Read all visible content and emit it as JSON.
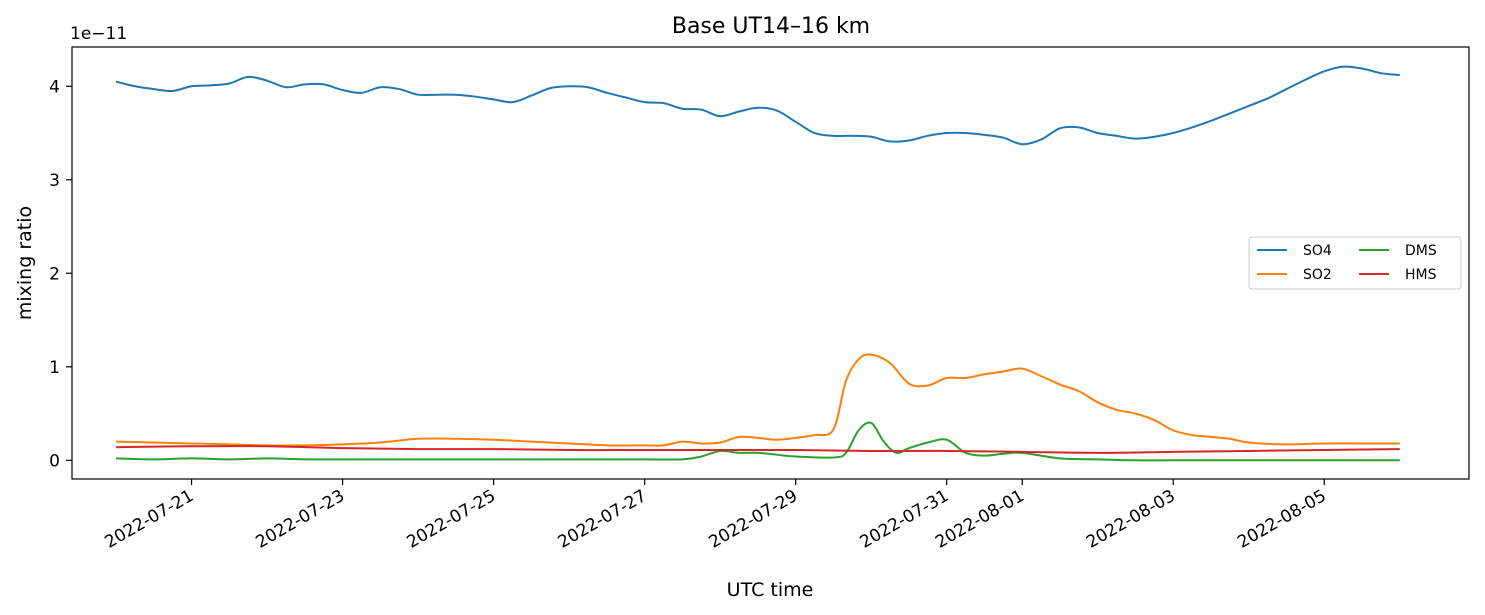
{
  "chart_data": {
    "type": "line",
    "title": "Base UT14–16 km",
    "xlabel": "UTC time",
    "ylabel": "mixing ratio",
    "y_offset_label": "1e−11",
    "x_is_date": true,
    "xlim": [
      "2022-07-19T10:00",
      "2022-08-06T22:00"
    ],
    "ylim": [
      -2e-12,
      4.42e-11
    ],
    "xticks": [
      "2022-07-21",
      "2022-07-23",
      "2022-07-25",
      "2022-07-27",
      "2022-07-29",
      "2022-07-31",
      "2022-08-01",
      "2022-08-03",
      "2022-08-05"
    ],
    "yticks": [
      0,
      1e-11,
      2e-11,
      3e-11,
      4e-11
    ],
    "ytick_labels": [
      "0",
      "1",
      "2",
      "3",
      "4"
    ],
    "grid": false,
    "legend": {
      "placement": "center-right",
      "columns": 2
    },
    "series": [
      {
        "name": "SO4",
        "color": "#1f77b4",
        "x": [
          "2022-07-20T00:00",
          "2022-07-20T06:00",
          "2022-07-20T12:00",
          "2022-07-20T18:00",
          "2022-07-21T00:00",
          "2022-07-21T06:00",
          "2022-07-21T12:00",
          "2022-07-21T18:00",
          "2022-07-22T00:00",
          "2022-07-22T06:00",
          "2022-07-22T12:00",
          "2022-07-22T18:00",
          "2022-07-23T00:00",
          "2022-07-23T06:00",
          "2022-07-23T12:00",
          "2022-07-23T18:00",
          "2022-07-24T00:00",
          "2022-07-24T06:00",
          "2022-07-24T12:00",
          "2022-07-24T18:00",
          "2022-07-25T00:00",
          "2022-07-25T06:00",
          "2022-07-25T12:00",
          "2022-07-25T18:00",
          "2022-07-26T00:00",
          "2022-07-26T06:00",
          "2022-07-26T12:00",
          "2022-07-26T18:00",
          "2022-07-27T00:00",
          "2022-07-27T06:00",
          "2022-07-27T12:00",
          "2022-07-27T18:00",
          "2022-07-28T00:00",
          "2022-07-28T06:00",
          "2022-07-28T12:00",
          "2022-07-28T18:00",
          "2022-07-29T00:00",
          "2022-07-29T06:00",
          "2022-07-29T12:00",
          "2022-07-29T18:00",
          "2022-07-30T00:00",
          "2022-07-30T06:00",
          "2022-07-30T12:00",
          "2022-07-30T18:00",
          "2022-07-31T00:00",
          "2022-07-31T06:00",
          "2022-07-31T12:00",
          "2022-07-31T18:00",
          "2022-08-01T00:00",
          "2022-08-01T06:00",
          "2022-08-01T12:00",
          "2022-08-01T18:00",
          "2022-08-02T00:00",
          "2022-08-02T06:00",
          "2022-08-02T12:00",
          "2022-08-02T18:00",
          "2022-08-03T00:00",
          "2022-08-03T06:00",
          "2022-08-03T12:00",
          "2022-08-03T18:00",
          "2022-08-04T00:00",
          "2022-08-04T06:00",
          "2022-08-04T12:00",
          "2022-08-04T18:00",
          "2022-08-05T00:00",
          "2022-08-05T06:00",
          "2022-08-05T12:00",
          "2022-08-05T18:00",
          "2022-08-06T00:00"
        ],
        "y": [
          4.05e-11,
          4e-11,
          3.97e-11,
          3.95e-11,
          4e-11,
          4.01e-11,
          4.03e-11,
          4.1e-11,
          4.06e-11,
          3.99e-11,
          4.02e-11,
          4.02e-11,
          3.96e-11,
          3.93e-11,
          3.99e-11,
          3.97e-11,
          3.91e-11,
          3.91e-11,
          3.91e-11,
          3.89e-11,
          3.86e-11,
          3.83e-11,
          3.9e-11,
          3.98e-11,
          4e-11,
          3.99e-11,
          3.93e-11,
          3.88e-11,
          3.83e-11,
          3.82e-11,
          3.76e-11,
          3.75e-11,
          3.68e-11,
          3.73e-11,
          3.77e-11,
          3.74e-11,
          3.62e-11,
          3.5e-11,
          3.47e-11,
          3.47e-11,
          3.46e-11,
          3.41e-11,
          3.42e-11,
          3.47e-11,
          3.5e-11,
          3.5e-11,
          3.48e-11,
          3.45e-11,
          3.38e-11,
          3.43e-11,
          3.55e-11,
          3.56e-11,
          3.5e-11,
          3.47e-11,
          3.44e-11,
          3.46e-11,
          3.5e-11,
          3.56e-11,
          3.63e-11,
          3.71e-11,
          3.79e-11,
          3.87e-11,
          3.97e-11,
          4.07e-11,
          4.16e-11,
          4.21e-11,
          4.19e-11,
          4.14e-11,
          4.12e-11
        ]
      },
      {
        "name": "SO2",
        "color": "#ff7f0e",
        "x": [
          "2022-07-20T00:00",
          "2022-07-20T12:00",
          "2022-07-21T00:00",
          "2022-07-21T12:00",
          "2022-07-22T00:00",
          "2022-07-22T12:00",
          "2022-07-23T00:00",
          "2022-07-23T12:00",
          "2022-07-24T00:00",
          "2022-07-24T12:00",
          "2022-07-25T00:00",
          "2022-07-25T12:00",
          "2022-07-26T00:00",
          "2022-07-26T12:00",
          "2022-07-27T00:00",
          "2022-07-27T06:00",
          "2022-07-27T12:00",
          "2022-07-27T18:00",
          "2022-07-28T00:00",
          "2022-07-28T06:00",
          "2022-07-28T12:00",
          "2022-07-28T18:00",
          "2022-07-29T00:00",
          "2022-07-29T06:00",
          "2022-07-29T12:00",
          "2022-07-29T16:00",
          "2022-07-29T20:00",
          "2022-07-30T00:00",
          "2022-07-30T06:00",
          "2022-07-30T12:00",
          "2022-07-30T18:00",
          "2022-07-31T00:00",
          "2022-07-31T06:00",
          "2022-07-31T12:00",
          "2022-07-31T18:00",
          "2022-08-01T00:00",
          "2022-08-01T06:00",
          "2022-08-01T12:00",
          "2022-08-01T18:00",
          "2022-08-02T00:00",
          "2022-08-02T06:00",
          "2022-08-02T12:00",
          "2022-08-02T18:00",
          "2022-08-03T00:00",
          "2022-08-03T06:00",
          "2022-08-03T12:00",
          "2022-08-03T18:00",
          "2022-08-04T00:00",
          "2022-08-04T12:00",
          "2022-08-05T00:00",
          "2022-08-05T12:00",
          "2022-08-06T00:00"
        ],
        "y": [
          2e-12,
          1.9e-12,
          1.8e-12,
          1.7e-12,
          1.6e-12,
          1.6e-12,
          1.7e-12,
          1.9e-12,
          2.3e-12,
          2.3e-12,
          2.2e-12,
          2e-12,
          1.8e-12,
          1.6e-12,
          1.6e-12,
          1.6e-12,
          2e-12,
          1.8e-12,
          1.9e-12,
          2.5e-12,
          2.4e-12,
          2.2e-12,
          2.4e-12,
          2.7e-12,
          3.3e-12,
          8.5e-12,
          1.08e-11,
          1.13e-11,
          1.04e-11,
          8.2e-12,
          8e-12,
          8.8e-12,
          8.8e-12,
          9.2e-12,
          9.5e-12,
          9.8e-12,
          9e-12,
          8.1e-12,
          7.4e-12,
          6.2e-12,
          5.4e-12,
          5e-12,
          4.3e-12,
          3.2e-12,
          2.7e-12,
          2.5e-12,
          2.3e-12,
          1.9e-12,
          1.7e-12,
          1.8e-12,
          1.8e-12,
          1.8e-12
        ]
      },
      {
        "name": "DMS",
        "color": "#2ca02c",
        "x": [
          "2022-07-20T00:00",
          "2022-07-20T12:00",
          "2022-07-21T00:00",
          "2022-07-21T12:00",
          "2022-07-22T00:00",
          "2022-07-22T12:00",
          "2022-07-23T00:00",
          "2022-07-23T12:00",
          "2022-07-24T00:00",
          "2022-07-24T12:00",
          "2022-07-25T00:00",
          "2022-07-25T12:00",
          "2022-07-26T00:00",
          "2022-07-26T12:00",
          "2022-07-27T00:00",
          "2022-07-27T12:00",
          "2022-07-27T18:00",
          "2022-07-28T00:00",
          "2022-07-28T06:00",
          "2022-07-28T12:00",
          "2022-07-28T18:00",
          "2022-07-29T00:00",
          "2022-07-29T12:00",
          "2022-07-29T16:00",
          "2022-07-29T20:00",
          "2022-07-30T00:00",
          "2022-07-30T04:00",
          "2022-07-30T08:00",
          "2022-07-30T12:00",
          "2022-07-30T18:00",
          "2022-07-31T00:00",
          "2022-07-31T06:00",
          "2022-07-31T12:00",
          "2022-07-31T18:00",
          "2022-08-01T00:00",
          "2022-08-01T12:00",
          "2022-08-02T00:00",
          "2022-08-02T12:00",
          "2022-08-03T00:00",
          "2022-08-03T12:00",
          "2022-08-04T00:00",
          "2022-08-04T12:00",
          "2022-08-05T00:00",
          "2022-08-05T12:00",
          "2022-08-06T00:00"
        ],
        "y": [
          2e-13,
          1e-13,
          2e-13,
          1e-13,
          2e-13,
          1e-13,
          1e-13,
          1e-13,
          1e-13,
          1e-13,
          1e-13,
          1e-13,
          1e-13,
          1e-13,
          1e-13,
          1e-13,
          4e-13,
          1e-12,
          8e-13,
          8e-13,
          6e-13,
          4e-13,
          3e-13,
          8e-13,
          3.2e-12,
          4e-12,
          2e-12,
          8e-13,
          1.3e-12,
          1.9e-12,
          2.2e-12,
          8e-13,
          5e-13,
          7e-13,
          8e-13,
          2e-13,
          1e-13,
          0.0,
          0.0,
          0.0,
          0.0,
          0.0,
          0.0,
          0.0,
          0.0
        ]
      },
      {
        "name": "HMS",
        "color": "#d62728",
        "x": [
          "2022-07-20T00:00",
          "2022-07-21T00:00",
          "2022-07-22T00:00",
          "2022-07-23T00:00",
          "2022-07-24T00:00",
          "2022-07-25T00:00",
          "2022-07-26T00:00",
          "2022-07-27T00:00",
          "2022-07-28T00:00",
          "2022-07-29T00:00",
          "2022-07-30T00:00",
          "2022-07-31T00:00",
          "2022-08-01T00:00",
          "2022-08-02T00:00",
          "2022-08-03T00:00",
          "2022-08-04T00:00",
          "2022-08-05T00:00",
          "2022-08-06T00:00"
        ],
        "y": [
          1.4e-12,
          1.5e-12,
          1.5e-12,
          1.3e-12,
          1.2e-12,
          1.2e-12,
          1.1e-12,
          1.1e-12,
          1.1e-12,
          1.1e-12,
          1e-12,
          1e-12,
          9e-13,
          8e-13,
          9e-13,
          1e-12,
          1.1e-12,
          1.2e-12
        ]
      }
    ]
  }
}
